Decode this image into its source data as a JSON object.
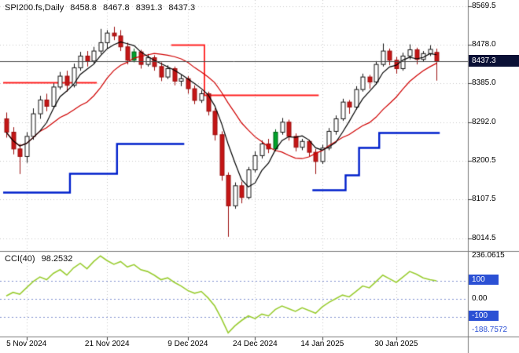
{
  "header": {
    "symbol": "SPI200.fs,Daily",
    "open": "8458.8",
    "high": "8467.8",
    "low": "8391.3",
    "close": "8437.3"
  },
  "indicator_label": {
    "name": "CCI(40)",
    "value": "98.2532"
  },
  "price_axis": {
    "labels": [
      "8569.5",
      "8478.0",
      "8385.0",
      "8292.0",
      "8200.5",
      "8107.5",
      "8014.5"
    ],
    "current": "8437.3"
  },
  "cci_axis": {
    "max": "236.0615",
    "upper": "100",
    "zero": "0.00",
    "lower": "-100",
    "min": "-188.7572"
  },
  "time_axis": [
    {
      "label": "5 Nov 2024",
      "bar": 3
    },
    {
      "label": "21 Nov 2024",
      "bar": 15
    },
    {
      "label": "9 Dec 2024",
      "bar": 27
    },
    {
      "label": "24 Dec 2024",
      "bar": 37
    },
    {
      "label": "14 Jan 2025",
      "bar": 47
    },
    {
      "label": "30 Jan 2025",
      "bar": 58
    }
  ],
  "colors": {
    "background": "#ffffff",
    "grid": "#c9c9c9",
    "bull": "#ffffff",
    "bear": "#c41616",
    "bull_border": "#141414",
    "bear_border": "#9c1010",
    "signal_green": "#00a32a",
    "signal_green_border": "#006018",
    "ma_fast": "#000000",
    "ma_slow": "#d00000",
    "support_blue": "#0020cc",
    "resistance_red": "#ff2020",
    "cci_line": "#9acd32",
    "cci_level": "#8090d0",
    "price_badge_bg": "#0a1035",
    "level_badge_bg": "#2b50d4",
    "bid_line": "#484848",
    "divider": "#7a7a7a"
  },
  "chart_data": {
    "type": "candlestick",
    "title": "SPI200.fs Daily with CCI(40)",
    "ylim": [
      7988,
      8584
    ],
    "gridline_prices": [
      8569.5,
      8478.0,
      8385.0,
      8292.0,
      8200.5,
      8107.5,
      8014.5
    ],
    "bid_price": 8437.3,
    "candles": [
      [
        8300,
        8315,
        8255,
        8268
      ],
      [
        8268,
        8280,
        8215,
        8228
      ],
      [
        8228,
        8240,
        8168,
        8210
      ],
      [
        8210,
        8268,
        8195,
        8258
      ],
      [
        8258,
        8325,
        8250,
        8312
      ],
      [
        8312,
        8355,
        8300,
        8345
      ],
      [
        8345,
        8360,
        8318,
        8330
      ],
      [
        8330,
        8385,
        8325,
        8376
      ],
      [
        8376,
        8412,
        8370,
        8402
      ],
      [
        8402,
        8415,
        8365,
        8380
      ],
      [
        8380,
        8432,
        8375,
        8422
      ],
      [
        8422,
        8460,
        8415,
        8450
      ],
      [
        8450,
        8462,
        8425,
        8438
      ],
      [
        8438,
        8472,
        8432,
        8462
      ],
      [
        8462,
        8515,
        8455,
        8482
      ],
      [
        8482,
        8512,
        8468,
        8505
      ],
      [
        8505,
        8520,
        8488,
        8498
      ],
      [
        8498,
        8512,
        8462,
        8472
      ],
      [
        8472,
        8482,
        8430,
        8440
      ],
      [
        8440,
        8468,
        8435,
        8460
      ],
      [
        8460,
        8465,
        8420,
        8430
      ],
      [
        8430,
        8455,
        8425,
        8446
      ],
      [
        8446,
        8452,
        8415,
        8425
      ],
      [
        8425,
        8435,
        8390,
        8400
      ],
      [
        8400,
        8428,
        8395,
        8420
      ],
      [
        8420,
        8425,
        8380,
        8390
      ],
      [
        8390,
        8405,
        8378,
        8396
      ],
      [
        8396,
        8402,
        8360,
        8372
      ],
      [
        8372,
        8380,
        8335,
        8344
      ],
      [
        8344,
        8368,
        8338,
        8360
      ],
      [
        8360,
        8365,
        8308,
        8318
      ],
      [
        8318,
        8325,
        8248,
        8262
      ],
      [
        8262,
        8270,
        8152,
        8165
      ],
      [
        8165,
        8172,
        8018,
        8092
      ],
      [
        8092,
        8148,
        8085,
        8140
      ],
      [
        8140,
        8150,
        8098,
        8112
      ],
      [
        8112,
        8185,
        8108,
        8178
      ],
      [
        8178,
        8222,
        8172,
        8212
      ],
      [
        8212,
        8248,
        8205,
        8240
      ],
      [
        8240,
        8252,
        8218,
        8228
      ],
      [
        8228,
        8275,
        8222,
        8268
      ],
      [
        8268,
        8302,
        8262,
        8292
      ],
      [
        8292,
        8298,
        8248,
        8258
      ],
      [
        8258,
        8265,
        8222,
        8232
      ],
      [
        8232,
        8252,
        8225,
        8246
      ],
      [
        8246,
        8250,
        8210,
        8220
      ],
      [
        8220,
        8228,
        8168,
        8198
      ],
      [
        8198,
        8238,
        8192,
        8230
      ],
      [
        8230,
        8278,
        8225,
        8270
      ],
      [
        8270,
        8308,
        8262,
        8300
      ],
      [
        8300,
        8348,
        8295,
        8340
      ],
      [
        8340,
        8345,
        8312,
        8328
      ],
      [
        8328,
        8378,
        8322,
        8370
      ],
      [
        8370,
        8408,
        8365,
        8400
      ],
      [
        8400,
        8405,
        8372,
        8388
      ],
      [
        8388,
        8438,
        8382,
        8430
      ],
      [
        8430,
        8480,
        8425,
        8462
      ],
      [
        8462,
        8468,
        8428,
        8440
      ],
      [
        8440,
        8448,
        8408,
        8420
      ],
      [
        8420,
        8458,
        8415,
        8450
      ],
      [
        8450,
        8478,
        8442,
        8465
      ],
      [
        8465,
        8470,
        8430,
        8442
      ],
      [
        8442,
        8462,
        8436,
        8456
      ],
      [
        8456,
        8476,
        8450,
        8466
      ],
      [
        8458.8,
        8467.8,
        8391.3,
        8437.3
      ]
    ],
    "green_candles": [
      19,
      40
    ],
    "ma_fast_period": 5,
    "ma_slow_period": 13,
    "support_steps_blue": [
      {
        "from": 0,
        "to": 9,
        "price": 8124
      },
      {
        "from": 9,
        "to": 16,
        "price": 8170
      },
      {
        "from": 16,
        "to": 26,
        "price": 8241
      },
      {
        "from": 46,
        "to": 50,
        "price": 8130
      },
      {
        "from": 50,
        "to": 52,
        "price": 8165
      },
      {
        "from": 52,
        "to": 55,
        "price": 8232
      },
      {
        "from": 55,
        "to": 64,
        "price": 8268
      }
    ],
    "resistance_steps_red": [
      {
        "from": 0,
        "to": 13,
        "price": 8388
      },
      {
        "from": 25,
        "to": 29,
        "price": 8477
      },
      {
        "from": 29,
        "to": 46,
        "price": 8357
      }
    ],
    "cci": {
      "period": 40,
      "ylim": [
        -200,
        250
      ],
      "levels": [
        100,
        0,
        -100
      ],
      "values": [
        15,
        35,
        25,
        60,
        95,
        120,
        105,
        140,
        160,
        130,
        170,
        195,
        165,
        205,
        236.0615,
        210,
        190,
        205,
        175,
        188,
        160,
        150,
        130,
        105,
        115,
        90,
        70,
        45,
        30,
        40,
        5,
        -40,
        -110,
        -188.7572,
        -150,
        -120,
        -95,
        -110,
        -85,
        -95,
        -60,
        -40,
        -55,
        -70,
        -50,
        -65,
        -80,
        -45,
        -20,
        0,
        20,
        10,
        40,
        70,
        60,
        95,
        130,
        110,
        90,
        120,
        150,
        135,
        115,
        105,
        98.2532
      ]
    }
  }
}
